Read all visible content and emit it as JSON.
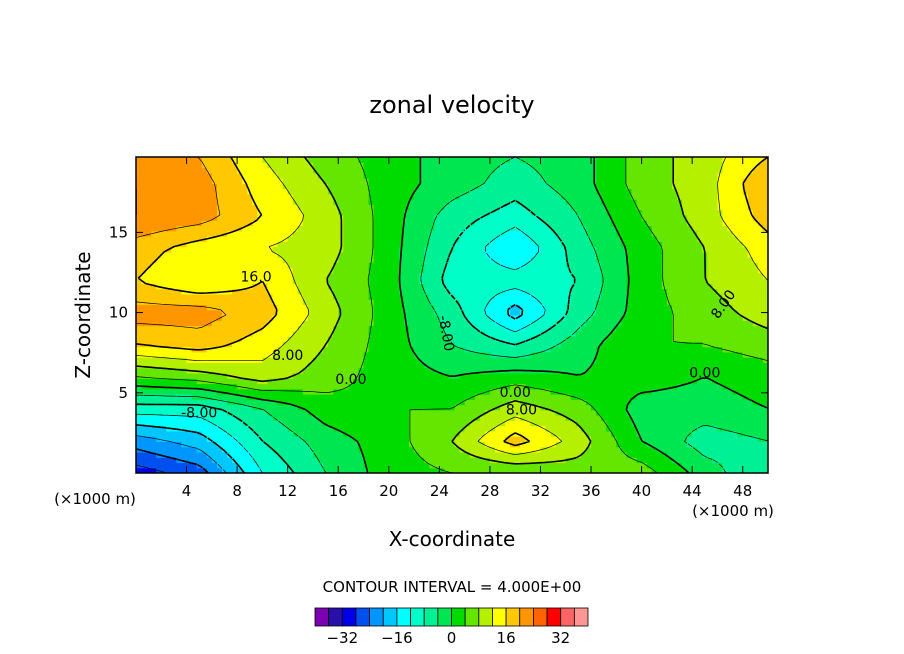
{
  "chart_data": {
    "type": "heatmap",
    "title": "zonal velocity",
    "xlabel": "X-coordinate",
    "ylabel": "Z-coordinate",
    "x_unit_left": "(×1000 m)",
    "x_unit_right": "(×1000 m)",
    "xlim": [
      0,
      50
    ],
    "ylim": [
      0,
      19.7
    ],
    "x_ticks": [
      4,
      8,
      12,
      16,
      20,
      24,
      28,
      32,
      36,
      40,
      44,
      48
    ],
    "y_ticks": [
      5,
      10,
      15
    ],
    "contour_interval_text": "CONTOUR INTERVAL = 4.000E+00",
    "contour_labels": [
      "16.0",
      "8.00",
      "0.00",
      "-8.00",
      "-8.00",
      "0.00",
      "8.00",
      "0.00",
      "8.00"
    ],
    "colorbar": {
      "levels": [
        -36,
        -32,
        -28,
        -24,
        -20,
        -16,
        -12,
        -8,
        -4,
        0,
        4,
        8,
        12,
        16,
        20,
        24,
        28,
        32,
        36
      ],
      "tick_labels": [
        "−32",
        "−16",
        "0",
        "16",
        "32"
      ],
      "tick_values": [
        -32,
        -16,
        0,
        16,
        32
      ],
      "colors": [
        "#7a00b0",
        "#2a0fa8",
        "#0000e8",
        "#0050f0",
        "#0096ff",
        "#00c8ff",
        "#00ffff",
        "#00ffc8",
        "#00f096",
        "#00e650",
        "#00dc00",
        "#64e600",
        "#b4f000",
        "#ffff00",
        "#ffc800",
        "#ff9600",
        "#ff6400",
        "#ff0000",
        "#ff6464",
        "#ff9696"
      ]
    },
    "x_grid": [
      0,
      5,
      10,
      15,
      20,
      25,
      30,
      35,
      40,
      45,
      50
    ],
    "z_grid": [
      0,
      2,
      4,
      6,
      8,
      10,
      12,
      14,
      16,
      18,
      19.7
    ],
    "values": [
      [
        -30,
        -26,
        -12,
        -4,
        2,
        4,
        4,
        6,
        6,
        -2,
        -8
      ],
      [
        -22,
        -18,
        -8,
        -2,
        2,
        8,
        18,
        10,
        0,
        -6,
        -4
      ],
      [
        -10,
        -10,
        -4,
        2,
        4,
        4,
        10,
        6,
        -2,
        -2,
        0
      ],
      [
        4,
        6,
        10,
        6,
        2,
        0,
        2,
        0,
        2,
        0,
        2
      ],
      [
        16,
        18,
        14,
        8,
        2,
        -4,
        -8,
        -2,
        4,
        4,
        6
      ],
      [
        22,
        22,
        18,
        10,
        2,
        -6,
        -18,
        -6,
        2,
        6,
        10
      ],
      [
        16,
        12,
        16,
        8,
        2,
        -10,
        -10,
        -8,
        2,
        8,
        12
      ],
      [
        18,
        14,
        12,
        10,
        2,
        -8,
        -16,
        -6,
        2,
        8,
        14
      ],
      [
        24,
        22,
        16,
        10,
        2,
        -6,
        -10,
        -4,
        4,
        10,
        18
      ],
      [
        24,
        22,
        14,
        8,
        2,
        -2,
        -6,
        -2,
        6,
        10,
        20
      ],
      [
        22,
        20,
        12,
        6,
        2,
        -2,
        -4,
        -2,
        6,
        10,
        16
      ]
    ]
  }
}
